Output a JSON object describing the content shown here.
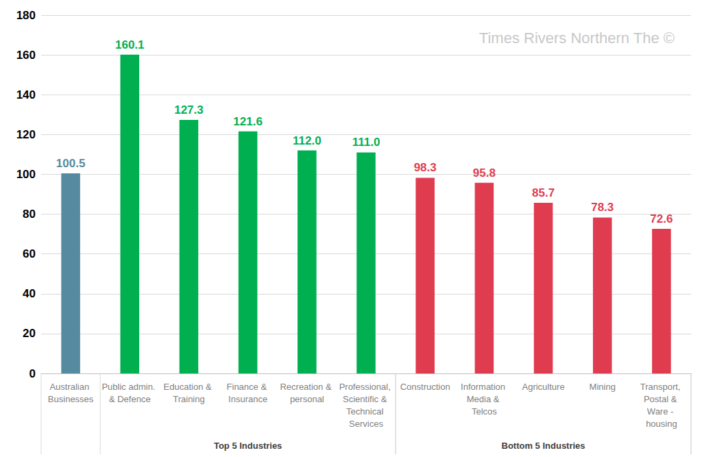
{
  "chart_data": {
    "type": "bar",
    "categories": [
      "Australian Businesses",
      "Public admin. & Defence",
      "Education & Training",
      "Finance & Insurance",
      "Recreation & personal",
      "Professional, Scientific & Technical Services",
      "Construction",
      "Information Media & Telcos",
      "Agriculture",
      "Mining",
      "Transport, Postal & Ware - housing"
    ],
    "values": [
      100.5,
      160.1,
      127.3,
      121.6,
      112.0,
      111.0,
      98.3,
      95.8,
      85.7,
      78.3,
      72.6
    ],
    "value_labels": [
      "100.5",
      "160.1",
      "127.3",
      "121.6",
      "112.0",
      "111.0",
      "98.3",
      "95.8",
      "85.7",
      "78.3",
      "72.6"
    ],
    "colors": [
      "#568aa0",
      "#00b050",
      "#00b050",
      "#00b050",
      "#00b050",
      "#00b050",
      "#e03c50",
      "#e03c50",
      "#e03c50",
      "#e03c50",
      "#e03c50"
    ],
    "groups": [
      {
        "label": "Top 5 Industries",
        "categories": [
          "Public admin. & Defence",
          "Education & Training",
          "Finance & Insurance",
          "Recreation & personal",
          "Professional, Scientific & Technical Services"
        ]
      },
      {
        "label": "Bottom 5 Industries",
        "categories": [
          "Construction",
          "Information Media & Telcos",
          "Agriculture",
          "Mining",
          "Transport, Postal & Ware - housing"
        ]
      }
    ],
    "annotations": [
      "Times Rivers Northern The ©"
    ],
    "ylim": [
      0,
      180
    ],
    "yticks": [
      0,
      20,
      40,
      60,
      80,
      100,
      120,
      140,
      160,
      180
    ],
    "grid": true,
    "data_labels": true
  }
}
